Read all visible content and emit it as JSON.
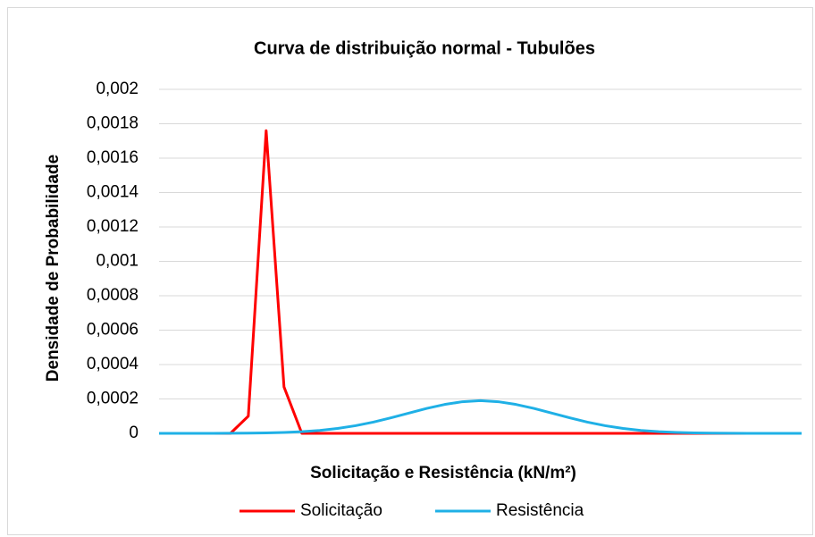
{
  "chart_data": {
    "type": "line",
    "title": "Curva de distribuição normal - Tubulões",
    "x_label": "Solicitação e Resistência (kN/m²)",
    "y_label": "Densidade de Probabilidade",
    "categories": [
      null,
      null,
      null,
      null,
      null,
      null,
      null,
      null,
      null,
      null,
      null,
      null,
      null,
      null,
      null,
      null,
      null,
      null,
      null,
      null,
      null,
      null,
      null,
      null,
      null,
      null,
      null,
      null,
      null,
      null,
      null,
      null,
      null,
      null,
      null,
      null,
      null
    ],
    "series": [
      {
        "name": "Solicitação",
        "color": "#ff0000",
        "values": [
          0,
          0,
          0,
          0,
          0,
          0.0001,
          0.00176,
          0.00027,
          0,
          0,
          0,
          0,
          0,
          0,
          0,
          0,
          0,
          0,
          0,
          0,
          0,
          0,
          0,
          0,
          0,
          0,
          0,
          0,
          0,
          0,
          0,
          0,
          0,
          0,
          0,
          0,
          0
        ]
      },
      {
        "name": "Resistência",
        "color": "#1fb0e6",
        "values": [
          0,
          0,
          1e-07,
          2e-07,
          5e-07,
          1.2e-06,
          2.6e-06,
          5.2e-06,
          9.7e-06,
          1.71e-05,
          2.85e-05,
          4.44e-05,
          6.52e-05,
          9.05e-05,
          0.000118,
          0.000145,
          0.000168,
          0.000184,
          0.00019,
          0.000184,
          0.000168,
          0.000145,
          0.000118,
          9.05e-05,
          6.52e-05,
          4.44e-05,
          2.85e-05,
          1.71e-05,
          9.7e-06,
          5.2e-06,
          2.6e-06,
          1.2e-06,
          5e-07,
          2e-07,
          1e-07,
          0,
          0
        ]
      }
    ],
    "ylim": [
      0,
      0.002
    ],
    "yticks": [
      0,
      {
        "value": 0.0002,
        "label": "0,0002"
      },
      {
        "value": 0.0004,
        "label": "0,0004"
      },
      {
        "value": 0.0006,
        "label": "0,0006"
      },
      {
        "value": 0.0008,
        "label": "0,0008"
      },
      {
        "value": 0.001,
        "label": "0,001"
      },
      {
        "value": 0.0012,
        "label": "0,0012"
      },
      {
        "value": 0.0014,
        "label": "0,0014"
      },
      {
        "value": 0.0016,
        "label": "0,0016"
      },
      {
        "value": 0.0018,
        "label": "0,0018"
      },
      {
        "value": 0.002,
        "label": "0,002"
      }
    ],
    "grid": true,
    "legend": "bottom"
  }
}
